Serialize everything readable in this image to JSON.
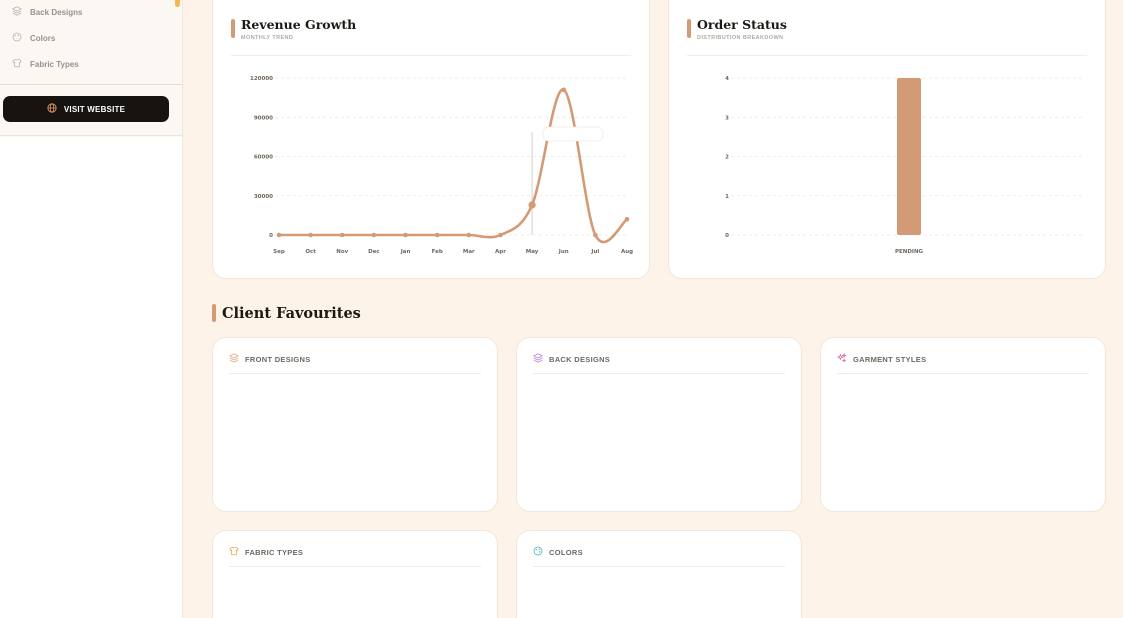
{
  "sidebar": {
    "items": [
      {
        "label": "Back Designs",
        "icon": "layers-icon"
      },
      {
        "label": "Colors",
        "icon": "palette-icon"
      },
      {
        "label": "Fabric Types",
        "icon": "shirt-icon"
      }
    ],
    "visit_label": "VISIT WEBSITE"
  },
  "revenue": {
    "title": "Revenue Growth",
    "subtitle": "MONTHLY TREND",
    "chart_data": {
      "type": "line",
      "x": [
        "Sep",
        "Oct",
        "Nov",
        "Dec",
        "Jan",
        "Feb",
        "Mar",
        "Apr",
        "May",
        "Jun",
        "Jul",
        "Aug"
      ],
      "values": [
        0,
        0,
        0,
        0,
        0,
        0,
        0,
        0,
        23000,
        111000,
        0,
        12000
      ],
      "yticks": [
        0,
        30000,
        60000,
        90000,
        120000
      ],
      "ylim": [
        0,
        120000
      ],
      "grid": true,
      "color": "#d39b75"
    }
  },
  "orders": {
    "title": "Order Status",
    "subtitle": "DISTRIBUTION BREAKDOWN",
    "chart_data": {
      "type": "bar",
      "categories": [
        "PENDING"
      ],
      "values": [
        4
      ],
      "yticks": [
        0,
        1,
        2,
        3,
        4
      ],
      "ylim": [
        0,
        4
      ],
      "grid": true,
      "color": "#d39b75"
    }
  },
  "favourites": {
    "title": "Client Favourites",
    "cards": [
      {
        "label": "FRONT DESIGNS",
        "icon": "layers-icon",
        "color": "#e0a27a"
      },
      {
        "label": "BACK DESIGNS",
        "icon": "layers-icon",
        "color": "#b57ad8"
      },
      {
        "label": "GARMENT STYLES",
        "icon": "sparkles-icon",
        "color": "#e05a9a"
      },
      {
        "label": "FABRIC TYPES",
        "icon": "shirt-icon",
        "color": "#e8a23c"
      },
      {
        "label": "COLORS",
        "icon": "palette-icon",
        "color": "#3bb3b0"
      }
    ]
  }
}
